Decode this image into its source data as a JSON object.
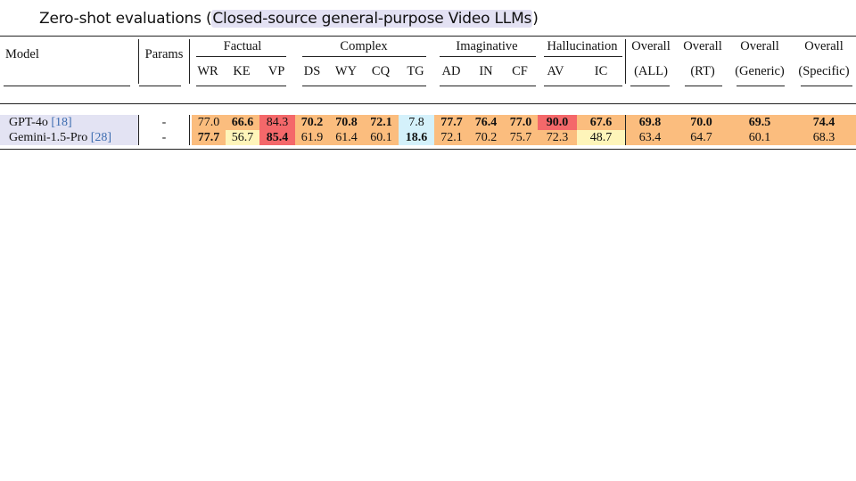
{
  "title": {
    "prefix": "Zero-shot evaluations (",
    "highlight": "Closed-source general-purpose Video LLMs",
    "suffix": ")"
  },
  "table": {
    "model_header": "Model",
    "params_header": "Params",
    "groups": [
      "Factual",
      "Complex",
      "Imaginative",
      "Hallucination"
    ],
    "overall_top": [
      "Overall",
      "Overall",
      "Overall",
      "Overall"
    ],
    "overall_sub": [
      "(ALL)",
      "(RT)",
      "(Generic)",
      "(Specific)"
    ],
    "subcols": [
      "WR",
      "KE",
      "VP",
      "DS",
      "WY",
      "CQ",
      "TG",
      "AD",
      "IN",
      "CF",
      "AV",
      "IC"
    ],
    "rows": [
      {
        "model": "GPT-4o",
        "ref": "[18]",
        "params": "-",
        "values": [
          "77.0",
          "66.6",
          "84.3",
          "70.2",
          "70.8",
          "72.1",
          "7.8",
          "77.7",
          "76.4",
          "77.0",
          "90.0",
          "67.6",
          "69.8",
          "70.0",
          "69.5",
          "74.4"
        ],
        "bold": [
          false,
          true,
          false,
          true,
          true,
          true,
          false,
          true,
          true,
          true,
          true,
          true,
          true,
          true,
          true,
          true
        ],
        "colors": [
          "#fbbd7e",
          "#fbbd7e",
          "#f4686a",
          "#fbbd7e",
          "#fbbd7e",
          "#fbbd7e",
          "#d4f1fb",
          "#fbbd7e",
          "#fbbd7e",
          "#fbbd7e",
          "#f4686a",
          "#fbbd7e",
          "#fbbd7e",
          "#fbbd7e",
          "#fbbd7e",
          "#fbbd7e"
        ]
      },
      {
        "model": "Gemini-1.5-Pro",
        "ref": "[28]",
        "params": "-",
        "values": [
          "77.7",
          "56.7",
          "85.4",
          "61.9",
          "61.4",
          "60.1",
          "18.6",
          "72.1",
          "70.2",
          "75.7",
          "72.3",
          "48.7",
          "63.4",
          "64.7",
          "60.1",
          "68.3"
        ],
        "bold": [
          true,
          false,
          true,
          false,
          false,
          false,
          true,
          false,
          false,
          false,
          false,
          false,
          false,
          false,
          false,
          false
        ],
        "colors": [
          "#fbbd7e",
          "#fef5ba",
          "#f4686a",
          "#fbbd7e",
          "#fbbd7e",
          "#fbbd7e",
          "#d4f1fb",
          "#fbbd7e",
          "#fbbd7e",
          "#fbbd7e",
          "#fbbd7e",
          "#fef5ba",
          "#fbbd7e",
          "#fbbd7e",
          "#fbbd7e",
          "#fbbd7e"
        ]
      }
    ],
    "model_cell_color": "#e3e3f3"
  }
}
